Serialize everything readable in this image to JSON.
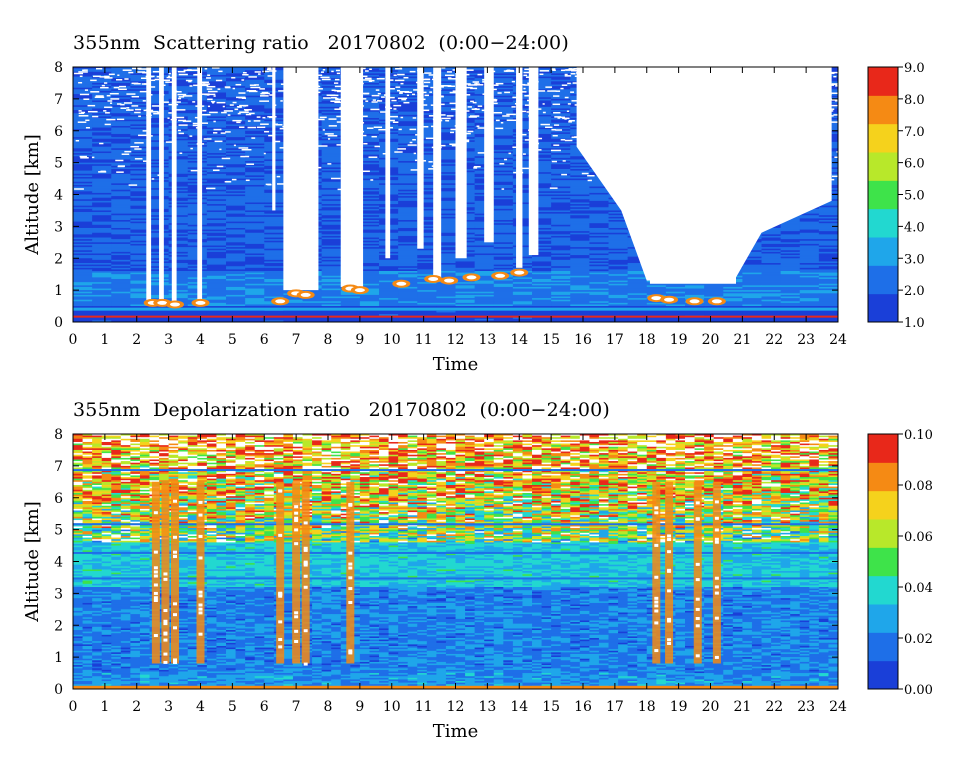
{
  "chart_data": [
    {
      "type": "heatmap",
      "title": "355nm  Scattering ratio   20170802  (0:00−24:00)",
      "xlabel": "Time",
      "ylabel": "Altitude [km]",
      "xlim": [
        0,
        24
      ],
      "ylim": [
        0,
        8
      ],
      "x_ticks": [
        "0",
        "1",
        "2",
        "3",
        "4",
        "5",
        "6",
        "7",
        "8",
        "9",
        "10",
        "11",
        "12",
        "13",
        "14",
        "15",
        "16",
        "17",
        "18",
        "19",
        "20",
        "21",
        "22",
        "23",
        "24"
      ],
      "y_ticks": [
        "0",
        "1",
        "2",
        "3",
        "4",
        "5",
        "6",
        "7",
        "8"
      ],
      "colorbar": {
        "min": 1.0,
        "max": 9.0,
        "tick_labels": [
          "1.0",
          "2.0",
          "3.0",
          "4.0",
          "5.0",
          "6.0",
          "7.0",
          "8.0",
          "9.0"
        ],
        "colors": [
          "#1a3fd8",
          "#1e6fe8",
          "#1fa6ea",
          "#22d8d0",
          "#3ee34a",
          "#b8e82a",
          "#f5d21c",
          "#f58a14",
          "#e8281a"
        ]
      },
      "background_value": 1.8,
      "cloud_bases_km": [
        {
          "time": 2.5,
          "base": 0.6
        },
        {
          "time": 2.8,
          "base": 0.6
        },
        {
          "time": 3.2,
          "base": 0.55
        },
        {
          "time": 4.0,
          "base": 0.6
        },
        {
          "time": 6.5,
          "base": 0.65
        },
        {
          "time": 7.0,
          "base": 0.9
        },
        {
          "time": 7.3,
          "base": 0.85
        },
        {
          "time": 8.7,
          "base": 1.05
        },
        {
          "time": 9.0,
          "base": 1.0
        },
        {
          "time": 10.3,
          "base": 1.2
        },
        {
          "time": 11.3,
          "base": 1.35
        },
        {
          "time": 11.8,
          "base": 1.3
        },
        {
          "time": 12.5,
          "base": 1.4
        },
        {
          "time": 13.4,
          "base": 1.45
        },
        {
          "time": 14.0,
          "base": 1.55
        },
        {
          "time": 18.3,
          "base": 0.75
        },
        {
          "time": 18.7,
          "base": 0.7
        },
        {
          "time": 19.5,
          "base": 0.65
        },
        {
          "time": 20.2,
          "base": 0.65
        }
      ],
      "no_signal_regions": [
        {
          "t0": 2.3,
          "t1": 2.45,
          "bottom": 0.6
        },
        {
          "t0": 2.7,
          "t1": 2.85,
          "bottom": 0.6
        },
        {
          "t0": 3.1,
          "t1": 3.25,
          "bottom": 0.55
        },
        {
          "t0": 3.9,
          "t1": 4.05,
          "bottom": 0.6
        },
        {
          "t0": 6.25,
          "t1": 6.35,
          "bottom": 3.5
        },
        {
          "t0": 6.6,
          "t1": 7.7,
          "bottom": 1.0
        },
        {
          "t0": 8.4,
          "t1": 9.1,
          "bottom": 1.1
        },
        {
          "t0": 9.8,
          "t1": 9.95,
          "bottom": 2.0
        },
        {
          "t0": 10.8,
          "t1": 11.0,
          "bottom": 2.3
        },
        {
          "t0": 11.3,
          "t1": 11.55,
          "bottom": 1.4
        },
        {
          "t0": 12.0,
          "t1": 12.35,
          "bottom": 2.0
        },
        {
          "t0": 12.9,
          "t1": 13.2,
          "bottom": 2.5
        },
        {
          "t0": 13.9,
          "t1": 14.1,
          "bottom": 1.7
        },
        {
          "t0": 14.3,
          "t1": 14.6,
          "bottom": 2.1
        },
        {
          "t0": 18.1,
          "t1": 20.8,
          "bottom": 1.2
        }
      ]
    },
    {
      "type": "heatmap",
      "title": "355nm  Depolarization ratio   20170802  (0:00−24:00)",
      "xlabel": "Time",
      "ylabel": "Altitude [km]",
      "xlim": [
        0,
        24
      ],
      "ylim": [
        0,
        8
      ],
      "x_ticks": [
        "0",
        "1",
        "2",
        "3",
        "4",
        "5",
        "6",
        "7",
        "8",
        "9",
        "10",
        "11",
        "12",
        "13",
        "14",
        "15",
        "16",
        "17",
        "18",
        "19",
        "20",
        "21",
        "22",
        "23",
        "24"
      ],
      "y_ticks": [
        "0",
        "1",
        "2",
        "3",
        "4",
        "5",
        "6",
        "7",
        "8"
      ],
      "colorbar": {
        "min": 0.0,
        "max": 0.1,
        "tick_labels": [
          "0.00",
          "0.02",
          "0.04",
          "0.06",
          "0.08",
          "0.10"
        ],
        "colors": [
          "#1a3fd8",
          "#1e6fe8",
          "#1fa6ea",
          "#22d8d0",
          "#3ee34a",
          "#b8e82a",
          "#f5d21c",
          "#f58a14",
          "#e8281a"
        ]
      },
      "background_value": 0.02,
      "high_columns": [
        {
          "time": 2.6
        },
        {
          "time": 2.9
        },
        {
          "time": 3.2
        },
        {
          "time": 4.0
        },
        {
          "time": 6.5
        },
        {
          "time": 7.0
        },
        {
          "time": 7.3
        },
        {
          "time": 8.7
        },
        {
          "time": 18.3
        },
        {
          "time": 18.7
        },
        {
          "time": 19.6
        },
        {
          "time": 20.2
        }
      ]
    }
  ]
}
